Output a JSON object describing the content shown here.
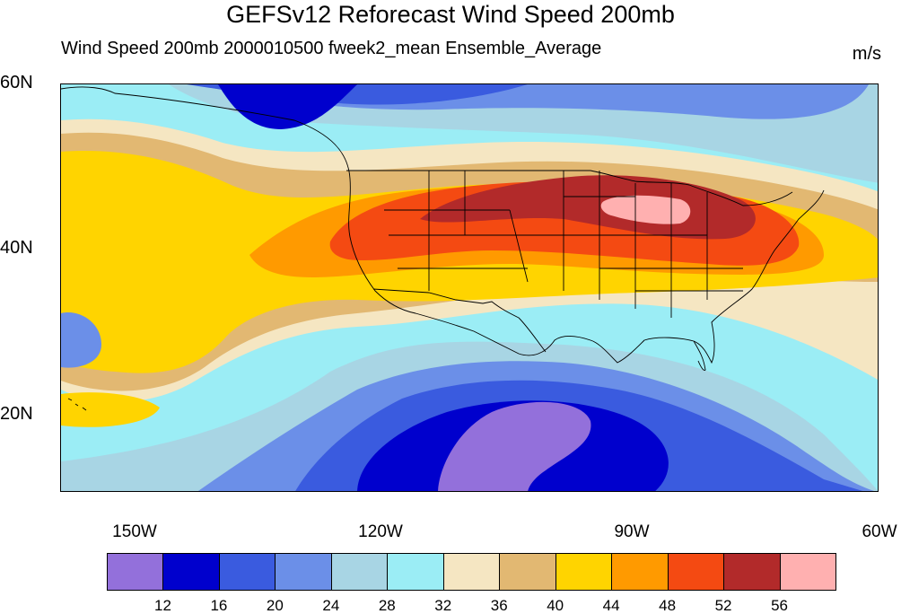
{
  "title": "GEFSv12 Reforecast Wind Speed 200mb",
  "subtitle": "Wind Speed 200mb 2000010500 fweek2_mean Ensemble_Average",
  "units": "m/s",
  "map": {
    "projection": "cylindrical-equidistant",
    "lon_range": [
      -160,
      -60
    ],
    "lat_range": [
      11,
      60
    ],
    "lat_labels": [
      "60N",
      "40N",
      "20N"
    ],
    "lon_labels": [
      "150W",
      "120W",
      "90W",
      "60W"
    ],
    "boundaries": "coastlines, US state boundaries, Canada/Mexico outlines"
  },
  "colorbar": {
    "colors": [
      "#9370DB",
      "#0000CD",
      "#3A5BDF",
      "#6B8FE8",
      "#A8D5E4",
      "#9BEDF5",
      "#F5E6C2",
      "#E2B872",
      "#FFD400",
      "#FF9A00",
      "#F44A12",
      "#B22A2A",
      "#FFB0B0"
    ],
    "tick_labels": [
      "12",
      "16",
      "20",
      "24",
      "28",
      "32",
      "36",
      "40",
      "44",
      "48",
      "52",
      "56"
    ],
    "thresholds": [
      12,
      16,
      20,
      24,
      28,
      32,
      36,
      40,
      44,
      48,
      52,
      56
    ]
  }
}
